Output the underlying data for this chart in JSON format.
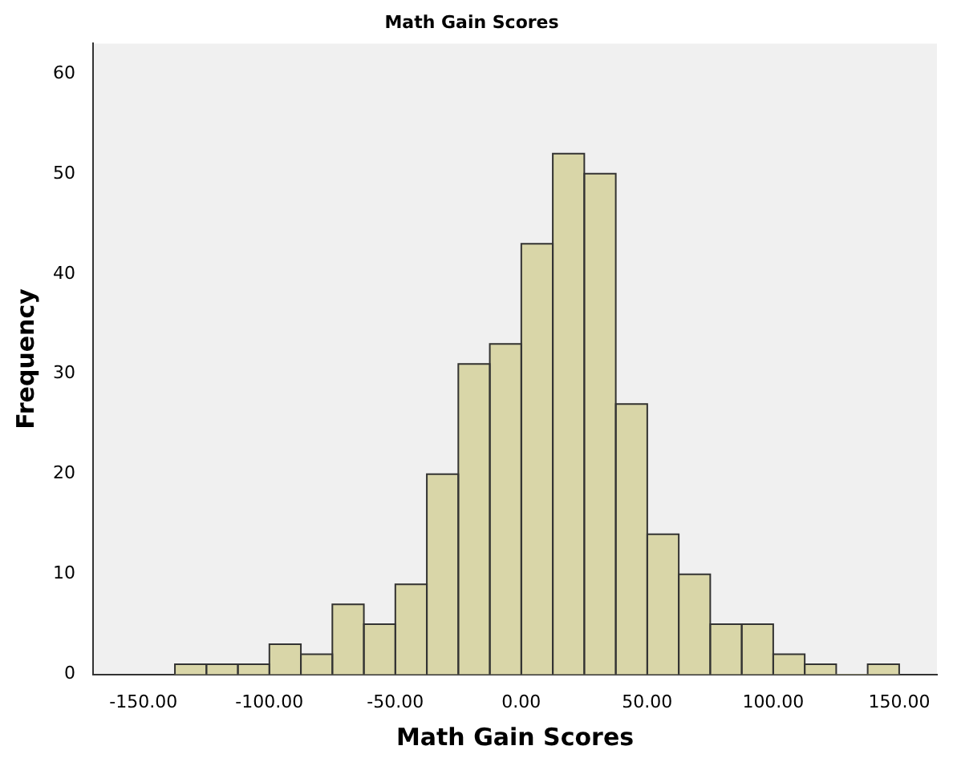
{
  "chart_data": {
    "type": "histogram",
    "title": "Math Gain Scores",
    "xlabel": "Math Gain Scores",
    "ylabel": "Frequency",
    "bins": [
      -137.5,
      -125,
      -112.5,
      -100,
      -87.5,
      -75,
      -62.5,
      -50,
      -37.5,
      -25,
      -12.5,
      0,
      12.5,
      25,
      37.5,
      50,
      62.5,
      75,
      87.5,
      100,
      112.5,
      125,
      137.5,
      150
    ],
    "values": [
      1,
      1,
      1,
      3,
      2,
      7,
      5,
      9,
      20,
      31,
      33,
      43,
      52,
      50,
      27,
      14,
      10,
      5,
      5,
      2,
      1,
      0,
      1
    ],
    "color": "#d9d6a8",
    "xlim": [
      -170,
      165
    ],
    "ylim": [
      0,
      63
    ],
    "xticks": [
      {
        "value": -150,
        "label": "-150.00"
      },
      {
        "value": -100,
        "label": "-100.00"
      },
      {
        "value": -50,
        "label": "-50.00"
      },
      {
        "value": 0,
        "label": "0.00"
      },
      {
        "value": 50,
        "label": "50.00"
      },
      {
        "value": 100,
        "label": "100.00"
      },
      {
        "value": 150,
        "label": "150.00"
      }
    ],
    "yticks": [
      0,
      10,
      20,
      30,
      40,
      50,
      60
    ],
    "grid": false,
    "legend": false
  }
}
